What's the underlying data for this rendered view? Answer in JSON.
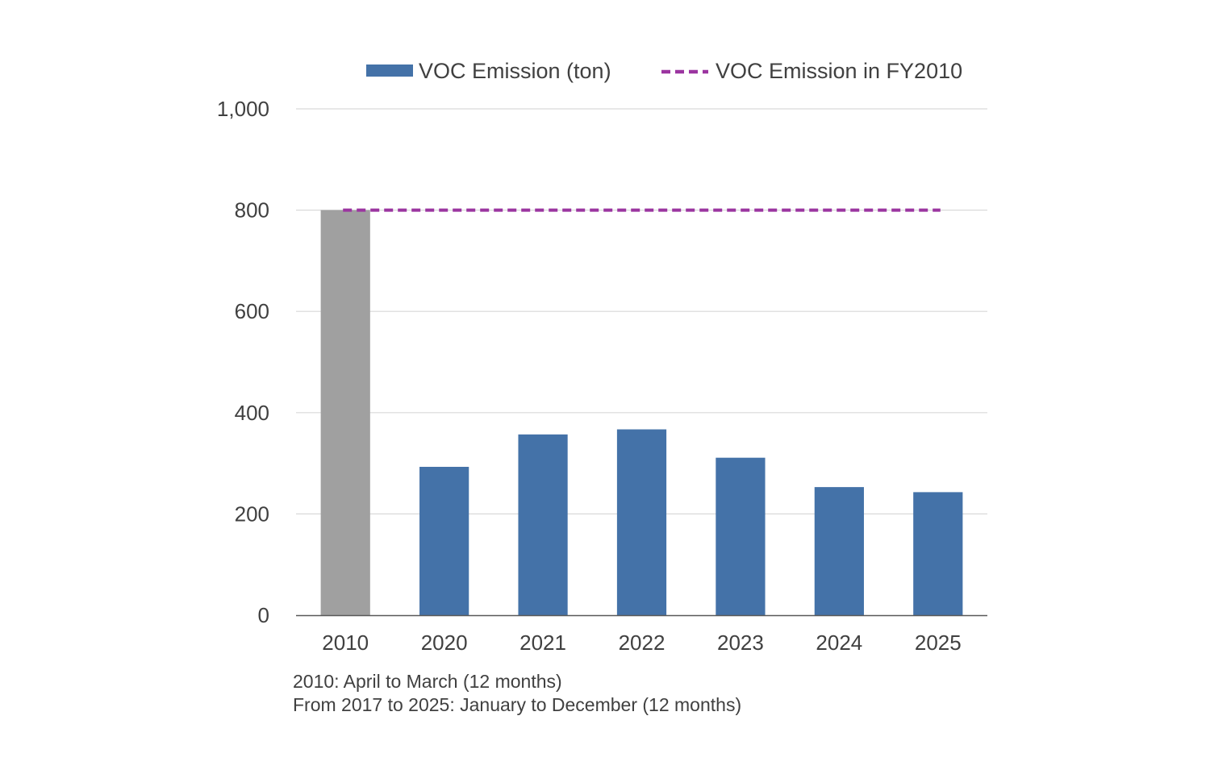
{
  "chart_data": {
    "type": "bar",
    "categories": [
      "2010",
      "2020",
      "2021",
      "2022",
      "2023",
      "2024",
      "2025"
    ],
    "series": [
      {
        "name": "VOC Emission (ton)",
        "values": [
          800,
          293,
          357,
          367,
          311,
          253,
          243
        ],
        "color": "#4472a8",
        "highlight_color": "#a0a0a0",
        "highlight_index": 0
      }
    ],
    "reference_line": {
      "name": "VOC Emission in FY2010",
      "value": 800,
      "color": "#9b35a0",
      "style": "dashed"
    },
    "yticks": [
      "0",
      "200",
      "400",
      "600",
      "800",
      "1,000"
    ],
    "ylim": [
      0,
      1000
    ],
    "grid": true,
    "legend_position": "top"
  },
  "notes": [
    "2010: April to March (12 months)",
    "From 2017 to 2025: January to December (12 months)"
  ]
}
